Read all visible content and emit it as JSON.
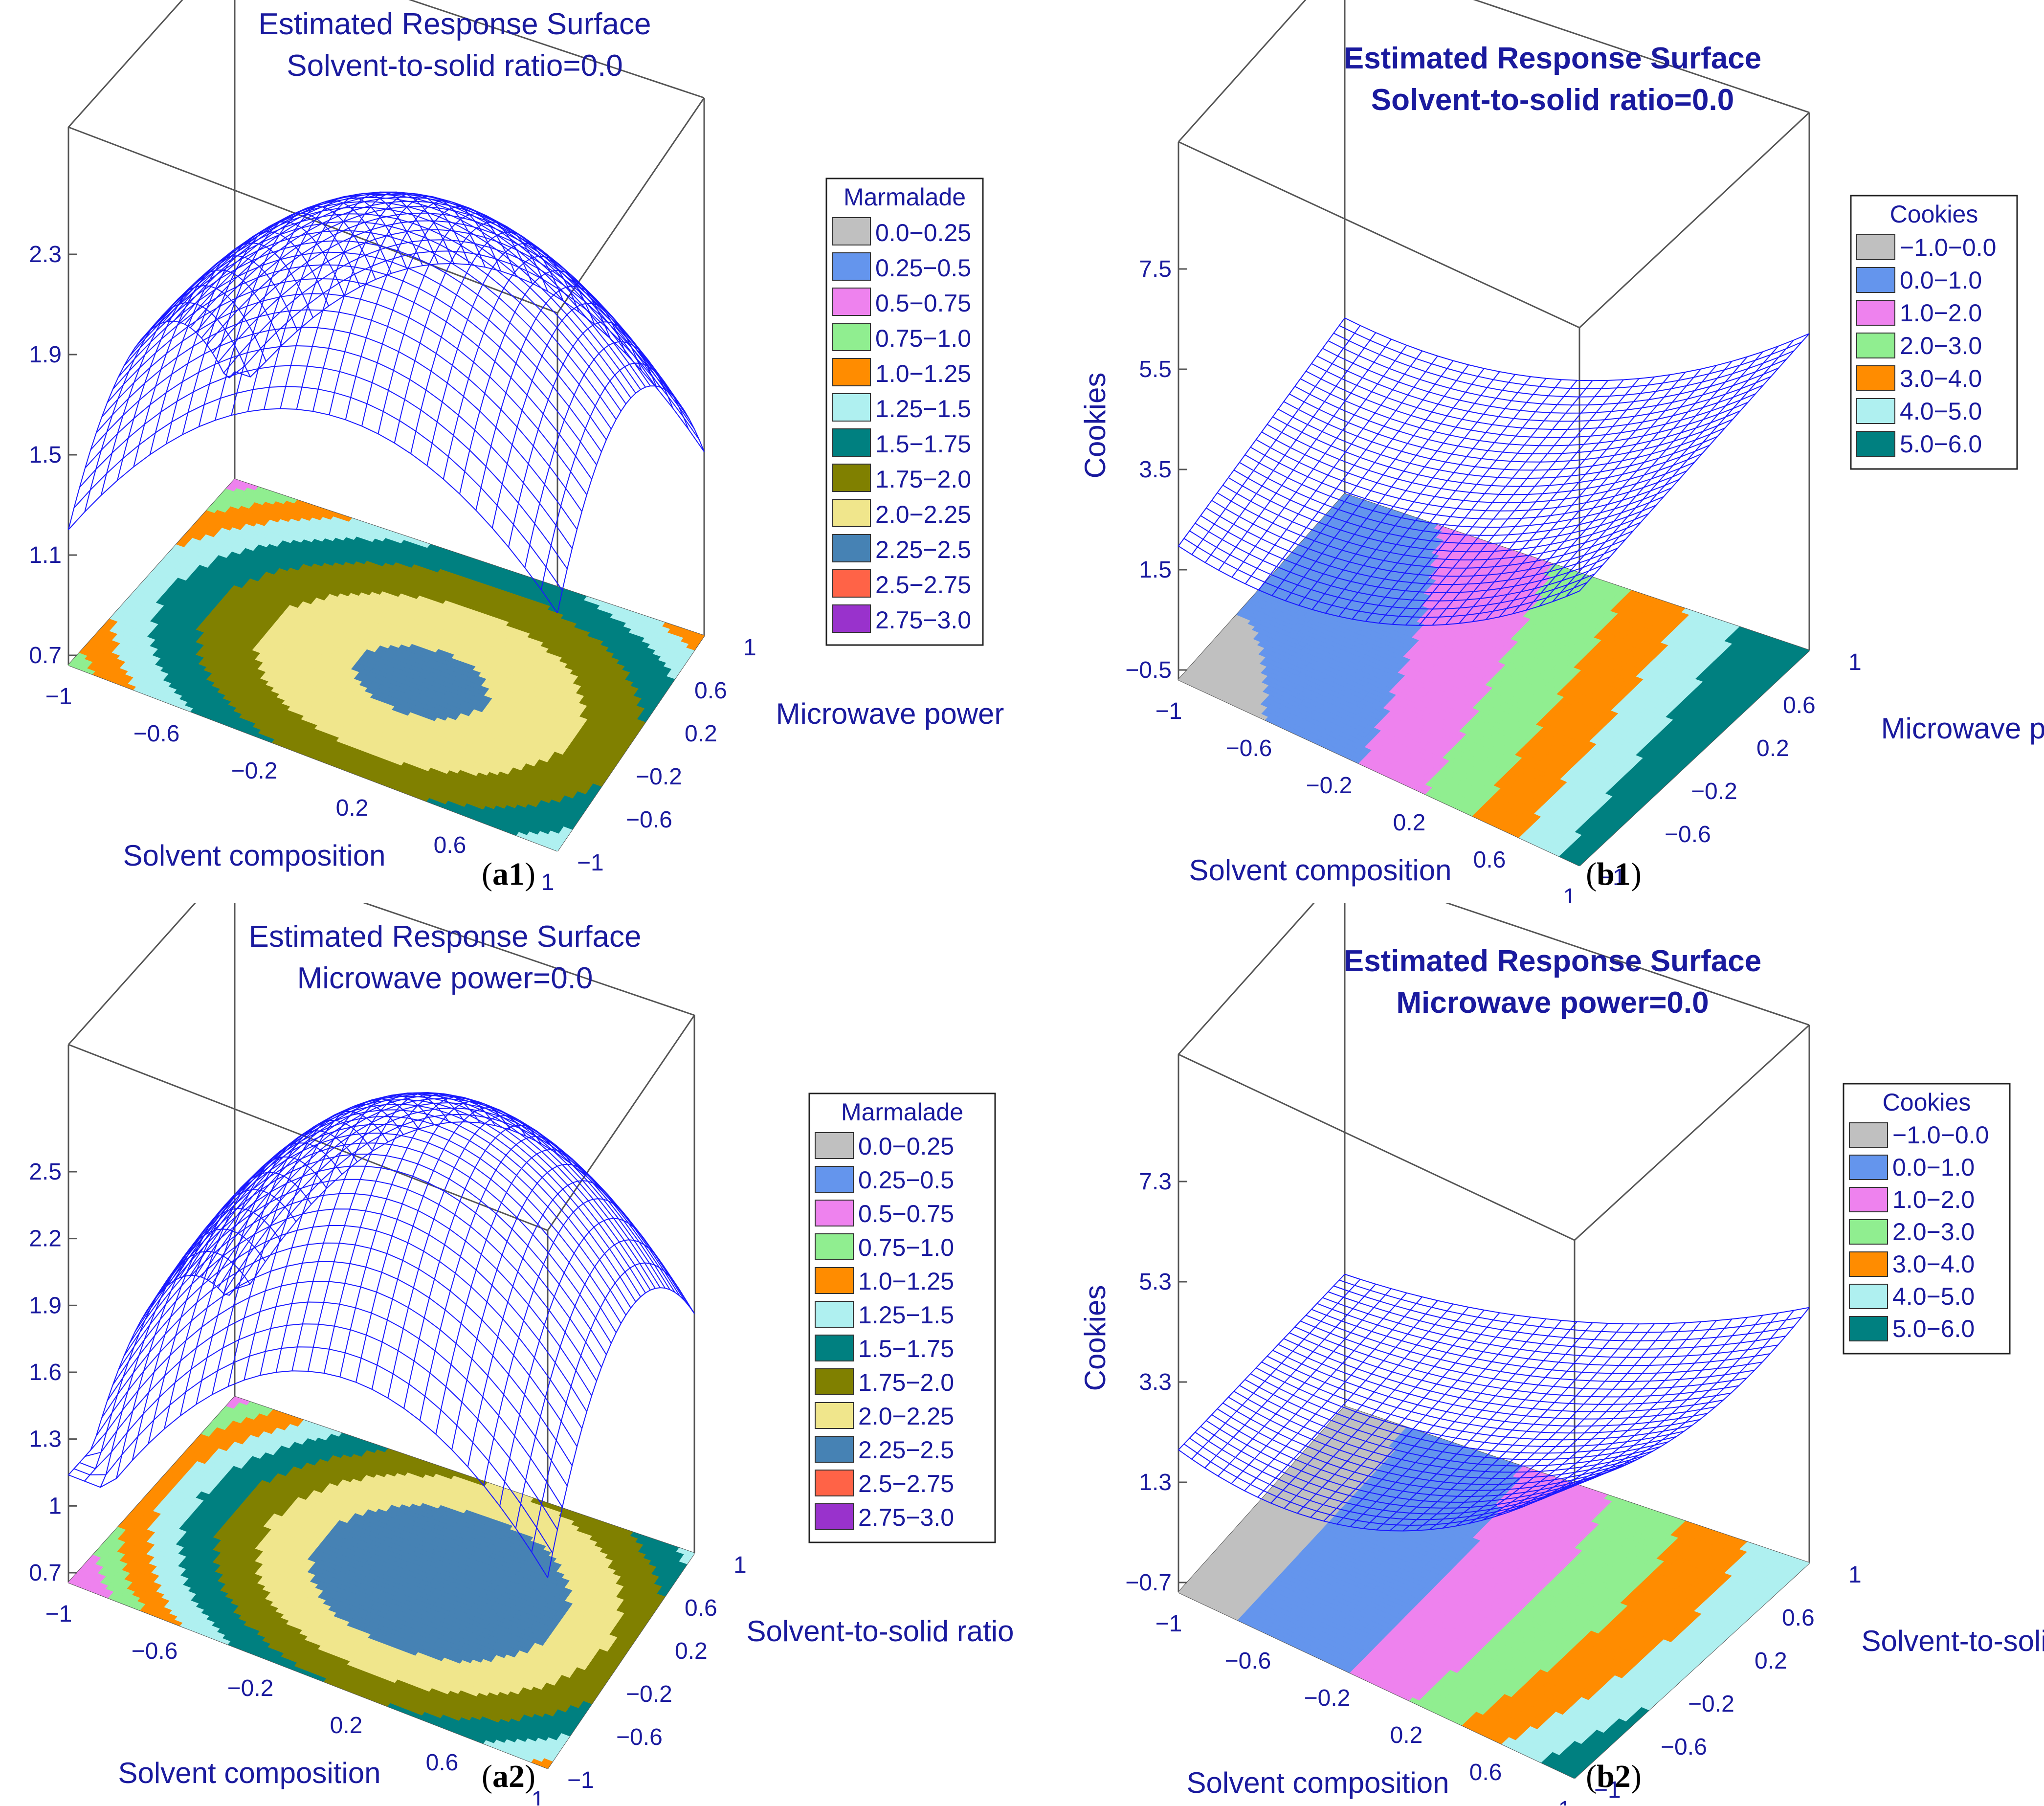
{
  "colors": {
    "text": "#1a1a9e",
    "mesh": "#1a1aff",
    "box": "#555555"
  },
  "legend_palette": [
    "#c0c0c0",
    "#6495ed",
    "#ee82ee",
    "#90ee90",
    "#ff8c00",
    "#aff0f0",
    "#008080",
    "#808000",
    "#f0e68c",
    "#4682b4",
    "#ff6347",
    "#9932cc"
  ],
  "chart_data": [
    {
      "id": "a1",
      "type": "surface",
      "caption": {
        "prefix": "(",
        "letter": "a",
        "num": "1",
        "suffix": ")"
      },
      "title": [
        "Estimated Response Surface",
        "Solvent-to-solid ratio=0.0"
      ],
      "xlabel": "Solvent composition",
      "ylabel": "Microwave power",
      "zlabel": "Marmalade",
      "x_ticks": [
        "−1",
        "−0.6",
        "−0.2",
        "0.2",
        "0.6",
        "1"
      ],
      "y_ticks": [
        "−1",
        "−0.6",
        "−0.2",
        "0.2",
        "0.6",
        "1"
      ],
      "z_ticks": [
        "0.7",
        "1.1",
        "1.5",
        "1.9",
        "2.3"
      ],
      "zlim": [
        0.7,
        2.3
      ],
      "legend_title": "Marmalade",
      "legend": [
        "0.0−0.25",
        "0.25−0.5",
        "0.5−0.75",
        "0.75−1.0",
        "1.0−1.25",
        "1.25−1.5",
        "1.5−1.75",
        "1.75−2.0",
        "2.0−2.25",
        "2.25−2.5",
        "2.5−2.75",
        "2.75−3.0"
      ]
    },
    {
      "id": "b1",
      "type": "surface",
      "caption": {
        "prefix": "(",
        "letter": "b",
        "num": "1",
        "suffix": ")"
      },
      "title": [
        "Estimated Response Surface",
        "Solvent-to-solid ratio=0.0"
      ],
      "xlabel": "Solvent composition",
      "ylabel": "Microwave power",
      "zlabel": "Cookies",
      "x_ticks": [
        "−1",
        "−0.6",
        "−0.2",
        "0.2",
        "0.6",
        "1"
      ],
      "y_ticks": [
        "−1",
        "−0.6",
        "−0.2",
        "0.2",
        "0.6",
        "1"
      ],
      "z_ticks": [
        "−0.5",
        "1.5",
        "3.5",
        "5.5",
        "7.5"
      ],
      "zlim": [
        -0.5,
        7.5
      ],
      "legend_title": "Cookies",
      "legend": [
        "−1.0−0.0",
        "0.0−1.0",
        "1.0−2.0",
        "2.0−3.0",
        "3.0−4.0",
        "4.0−5.0",
        "5.0−6.0"
      ]
    },
    {
      "id": "a2",
      "type": "surface",
      "caption": {
        "prefix": "(",
        "letter": "a",
        "num": "2",
        "suffix": ")"
      },
      "title": [
        "Estimated Response Surface",
        "Microwave power=0.0"
      ],
      "xlabel": "Solvent composition",
      "ylabel": "Solvent-to-solid ratio",
      "zlabel": "Marmalade",
      "x_ticks": [
        "−1",
        "−0.6",
        "−0.2",
        "0.2",
        "0.6",
        "1"
      ],
      "y_ticks": [
        "−1",
        "−0.6",
        "−0.2",
        "0.2",
        "0.6",
        "1"
      ],
      "z_ticks": [
        "0.7",
        "1",
        "1.3",
        "1.6",
        "1.9",
        "2.2",
        "2.5"
      ],
      "zlim": [
        0.7,
        2.5
      ],
      "legend_title": "Marmalade",
      "legend": [
        "0.0−0.25",
        "0.25−0.5",
        "0.5−0.75",
        "0.75−1.0",
        "1.0−1.25",
        "1.25−1.5",
        "1.5−1.75",
        "1.75−2.0",
        "2.0−2.25",
        "2.25−2.5",
        "2.5−2.75",
        "2.75−3.0"
      ]
    },
    {
      "id": "b2",
      "type": "surface",
      "caption": {
        "prefix": "(",
        "letter": "b",
        "num": "2",
        "suffix": ")"
      },
      "title": [
        "Estimated Response Surface",
        "Microwave  power=0.0"
      ],
      "xlabel": "Solvent composition",
      "ylabel": "Solvent-to-solid ratio",
      "zlabel": "Cookies",
      "x_ticks": [
        "−1",
        "−0.6",
        "−0.2",
        "0.2",
        "0.6",
        "1"
      ],
      "y_ticks": [
        "−1",
        "−0.6",
        "−0.2",
        "0.2",
        "0.6",
        "1"
      ],
      "z_ticks": [
        "−0.7",
        "1.3",
        "3.3",
        "5.3",
        "7.3"
      ],
      "zlim": [
        -0.7,
        7.3
      ],
      "legend_title": "Cookies",
      "legend": [
        "−1.0−0.0",
        "0.0−1.0",
        "1.0−2.0",
        "2.0−3.0",
        "3.0−4.0",
        "4.0−5.0",
        "5.0−6.0"
      ]
    }
  ]
}
